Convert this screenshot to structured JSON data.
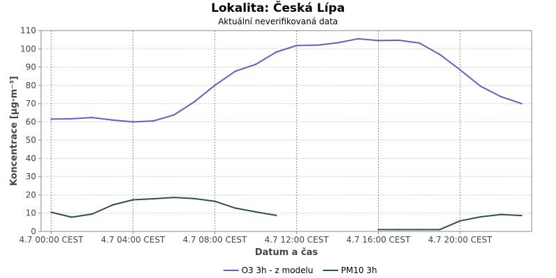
{
  "chart_data": {
    "type": "line",
    "title": "Lokalita: Česká Lípa",
    "subtitle": "Aktuální neverifikovaná data",
    "xlabel": "Datum a čas",
    "ylabel": "Koncentrace [µg·m⁻³]",
    "ylim": [
      0,
      110
    ],
    "yticks": [
      0,
      10,
      20,
      30,
      40,
      50,
      60,
      70,
      80,
      90,
      100,
      110
    ],
    "xlim": [
      -0.5,
      23.5
    ],
    "xticks": [
      {
        "hour": 0,
        "label": "4.7 00:00 CEST"
      },
      {
        "hour": 4,
        "label": "4.7 04:00 CEST"
      },
      {
        "hour": 8,
        "label": "4.7 08:00 CEST"
      },
      {
        "hour": 12,
        "label": "4.7 12:00 CEST"
      },
      {
        "hour": 16,
        "label": "4.7 16:00 CEST"
      },
      {
        "hour": 20,
        "label": "4.7 20:00 CEST"
      }
    ],
    "grid": true,
    "legend_position": "bottom",
    "series": [
      {
        "name": "O3 3h - z modelu",
        "color": "#6a5acd",
        "points": [
          [
            0,
            61.5
          ],
          [
            1,
            61.7
          ],
          [
            2,
            62.4
          ],
          [
            3,
            61
          ],
          [
            4,
            60
          ],
          [
            5,
            60.5
          ],
          [
            6,
            63.8
          ],
          [
            7,
            71
          ],
          [
            8,
            80
          ],
          [
            9,
            87.7
          ],
          [
            10,
            91.5
          ],
          [
            11,
            98.2
          ],
          [
            12,
            101.8
          ],
          [
            13,
            102
          ],
          [
            14,
            103.3
          ],
          [
            15,
            105.5
          ],
          [
            16,
            104.5
          ],
          [
            17,
            104.7
          ],
          [
            18,
            103.2
          ],
          [
            19,
            97
          ],
          [
            20,
            88.5
          ],
          [
            21,
            79.5
          ],
          [
            22,
            73.8
          ],
          [
            23,
            70
          ]
        ]
      },
      {
        "name": "PM10 3h",
        "color": "#2f4f4f",
        "points": [
          [
            0,
            10.5
          ],
          [
            1,
            7.8
          ],
          [
            2,
            9.5
          ],
          [
            3,
            14.5
          ],
          [
            4,
            17.3
          ],
          [
            5,
            17.9
          ],
          [
            6,
            18.6
          ],
          [
            7,
            18
          ],
          [
            8,
            16.5
          ],
          [
            9,
            12.8
          ],
          [
            10,
            10.7
          ],
          [
            11,
            8.8
          ],
          [
            16,
            1
          ],
          [
            17,
            1
          ],
          [
            18,
            1
          ],
          [
            19,
            1
          ],
          [
            20,
            5.8
          ],
          [
            21,
            8
          ],
          [
            22,
            9.3
          ],
          [
            23,
            8.7
          ]
        ]
      }
    ]
  }
}
